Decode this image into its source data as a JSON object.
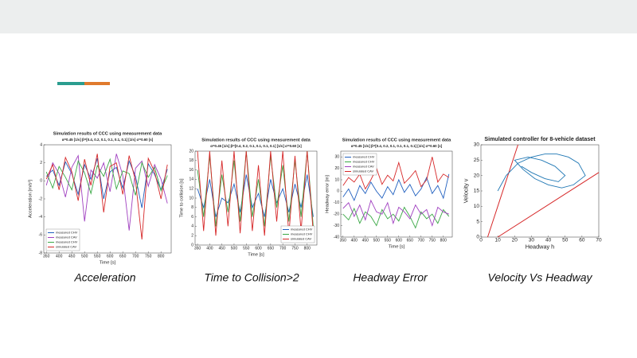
{
  "charts": [
    {
      "type": "line",
      "caption": "Acceleration",
      "title": "Simulation results of CCC using measurement data",
      "subtitle": "α=0.45 [1/s]   β=[0.4, 0.2, 0.1, 0.1, 0.1, 0.1] [1/s]   σ=0.60 [s]",
      "xlabel": "Time [s]",
      "ylabel": "Acceleration [m/s²]",
      "x": [
        350,
        375,
        400,
        425,
        450,
        475,
        500,
        525,
        550,
        575,
        600,
        625,
        650,
        675,
        700,
        725,
        750,
        775,
        800,
        825
      ],
      "xlim": [
        340,
        840
      ],
      "xticks": [
        350,
        400,
        450,
        500,
        550,
        600,
        650,
        700,
        750,
        800
      ],
      "ylim": [
        -8,
        4
      ],
      "yticks": [
        -8,
        -6,
        -4,
        -2,
        0,
        2,
        4
      ],
      "legend": "lower left",
      "series": [
        {
          "name": "measured CHV",
          "color": "#1f5fbf",
          "values": [
            0.5,
            1.2,
            -0.5,
            2.1,
            0.8,
            -1.5,
            1.8,
            0.2,
            2.5,
            -2.0,
            1.0,
            1.5,
            -0.8,
            2.2,
            0.5,
            -3.0,
            1.9,
            0.7,
            -1.0,
            1.3
          ]
        },
        {
          "name": "measured CAV",
          "color": "#a040c0",
          "values": [
            -0.5,
            2.0,
            0.8,
            -1.8,
            1.5,
            2.8,
            -4.5,
            1.2,
            0.3,
            2.0,
            -1.2,
            3.0,
            0.6,
            -5.5,
            1.4,
            2.2,
            -0.6,
            1.8,
            0.2,
            -2.5
          ]
        },
        {
          "name": "measured CHV",
          "color": "#3aa845",
          "values": [
            1.0,
            -0.8,
            1.6,
            0.4,
            -1.0,
            2.2,
            0.9,
            -1.4,
            1.7,
            0.5,
            2.4,
            -0.9,
            1.1,
            0.8,
            -1.6,
            2.0,
            0.4,
            1.5,
            -1.1,
            0.6
          ]
        },
        {
          "name": "simulated CAV",
          "color": "#d62728",
          "values": [
            0.2,
            1.8,
            -1.0,
            2.6,
            1.0,
            -2.2,
            2.4,
            -0.5,
            3.0,
            -3.5,
            1.6,
            2.0,
            -1.5,
            2.8,
            0.0,
            -6.5,
            2.5,
            1.0,
            -2.0,
            1.8
          ]
        }
      ]
    },
    {
      "type": "line",
      "caption": "Time to Collision>2",
      "title": "Simulation results of CCC using measurement data",
      "subtitle": "α=0.45 [1/s]   β=[0.4, 0.2, 0.1, 0.1, 0.1, 0.1] [1/s]   σ=0.60 [s]",
      "xlabel": "Time [s]",
      "ylabel": "Time to collision [s]",
      "x": [
        350,
        375,
        400,
        425,
        450,
        475,
        500,
        525,
        550,
        575,
        600,
        625,
        650,
        675,
        700,
        725,
        750,
        775,
        800,
        825
      ],
      "xlim": [
        340,
        840
      ],
      "xticks": [
        350,
        400,
        450,
        500,
        550,
        600,
        650,
        700,
        750,
        800
      ],
      "ylim": [
        0,
        20
      ],
      "yticks": [
        0,
        2,
        4,
        6,
        8,
        10,
        12,
        14,
        16,
        18,
        20
      ],
      "legend": "lower right",
      "series": [
        {
          "name": "measured CHV",
          "color": "#1f5fbf",
          "values": [
            12,
            8,
            14,
            6,
            10,
            9,
            13,
            7,
            15,
            8,
            11,
            6,
            14,
            9,
            12,
            7,
            13,
            8,
            15,
            6
          ]
        },
        {
          "name": "measured CHV",
          "color": "#3aa845",
          "values": [
            16,
            6,
            19,
            4,
            15,
            7,
            18,
            5,
            20,
            6,
            14,
            4,
            19,
            8,
            17,
            5,
            18,
            6,
            20,
            4
          ]
        },
        {
          "name": "simulated CAV",
          "color": "#d62728",
          "values": [
            20,
            3,
            20,
            2,
            18,
            4,
            20,
            2.5,
            20,
            3,
            17,
            2,
            20,
            5,
            20,
            2.2,
            19,
            3,
            20,
            2.5
          ]
        }
      ]
    },
    {
      "type": "line",
      "caption": "Headway Error",
      "title": "Simulation results of CCC using measurement data",
      "subtitle": "α=0.45 [1/s]   β=[0.4, 0.2, 0.1, 0.1, 0.1, 0.1] [1/s]   σ=0.60 [s]",
      "xlabel": "Time [s]",
      "ylabel": "Headway error [m]",
      "x": [
        350,
        375,
        400,
        425,
        450,
        475,
        500,
        525,
        550,
        575,
        600,
        625,
        650,
        675,
        700,
        725,
        750,
        775,
        800,
        825
      ],
      "xlim": [
        340,
        840
      ],
      "xticks": [
        350,
        400,
        450,
        500,
        550,
        600,
        650,
        700,
        750,
        800
      ],
      "ylim": [
        -40,
        35
      ],
      "yticks": [
        -40,
        -30,
        -20,
        -10,
        0,
        10,
        20,
        30
      ],
      "legend": "upper left",
      "series": [
        {
          "name": "measured CHV",
          "color": "#1f5fbf",
          "values": [
            -5,
            2,
            -8,
            5,
            -2,
            8,
            0,
            -6,
            4,
            -3,
            10,
            -1,
            6,
            -4,
            2,
            12,
            -2,
            5,
            -6,
            15
          ]
        },
        {
          "name": "measured CHV",
          "color": "#3aa845",
          "values": [
            -20,
            -25,
            -15,
            -28,
            -18,
            -22,
            -30,
            -16,
            -24,
            -20,
            -26,
            -14,
            -22,
            -32,
            -18,
            -24,
            -20,
            -28,
            -16,
            -22
          ]
        },
        {
          "name": "measured CAV",
          "color": "#a040c0",
          "values": [
            -15,
            -10,
            -22,
            -12,
            -25,
            -8,
            -18,
            -20,
            -10,
            -28,
            -14,
            -18,
            -24,
            -12,
            -20,
            -16,
            -30,
            -14,
            -18,
            -20
          ]
        },
        {
          "name": "simulated CAV",
          "color": "#d62728",
          "values": [
            5,
            12,
            8,
            15,
            2,
            10,
            20,
            6,
            14,
            9,
            25,
            7,
            12,
            18,
            4,
            10,
            30,
            8,
            15,
            12
          ]
        }
      ]
    },
    {
      "type": "line",
      "caption": "Velocity Vs Headway",
      "title": "Simulated controller for 8-vehicle dataset",
      "xlabel": "Headway h",
      "ylabel": "Velocity v",
      "x": [
        10,
        15,
        22,
        30,
        38,
        45,
        52,
        58,
        62,
        55,
        48,
        40,
        32,
        25,
        20,
        28,
        36,
        44,
        50,
        46,
        38,
        30,
        24
      ],
      "xlim": [
        0,
        70
      ],
      "xticks": [
        0,
        10,
        20,
        30,
        40,
        50,
        60,
        70
      ],
      "ylim": [
        0,
        30
      ],
      "yticks": [
        0,
        5,
        10,
        15,
        20,
        25,
        30
      ],
      "series": [
        {
          "color": "#1f77b4",
          "values": [
            15,
            20,
            24,
            26,
            27,
            27,
            26,
            24,
            20,
            17,
            16,
            17,
            19,
            22,
            25,
            26,
            25,
            23,
            20,
            18,
            19,
            21,
            23
          ]
        }
      ],
      "reference_lines": [
        {
          "color": "#d62728",
          "x": [
            4,
            22
          ],
          "y": [
            0,
            30
          ]
        },
        {
          "color": "#d62728",
          "x": [
            10,
            70
          ],
          "y": [
            0,
            21
          ]
        }
      ]
    }
  ]
}
